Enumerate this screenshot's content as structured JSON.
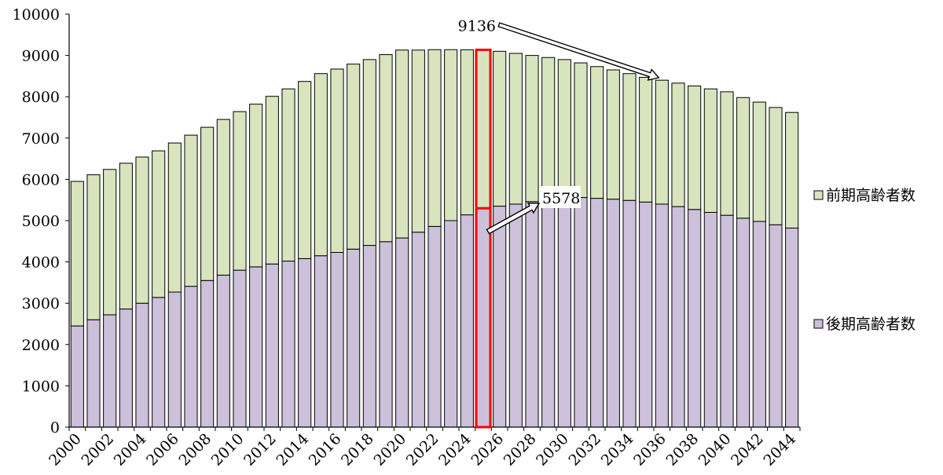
{
  "chart_data": {
    "type": "bar",
    "stacked": true,
    "title": "",
    "xlabel": "",
    "ylabel": "",
    "ylim": [
      0,
      10000
    ],
    "yticks": [
      0,
      1000,
      2000,
      3000,
      4000,
      5000,
      6000,
      7000,
      8000,
      9000,
      10000
    ],
    "grid": false,
    "legend_position": "right",
    "categories": [
      "2000",
      "2001",
      "2002",
      "2003",
      "2004",
      "2005",
      "2006",
      "2007",
      "2008",
      "2009",
      "2010",
      "2011",
      "2012",
      "2013",
      "2014",
      "2015",
      "2016",
      "2017",
      "2018",
      "2019",
      "2020",
      "2021",
      "2022",
      "2023",
      "2024",
      "2025",
      "2026",
      "2027",
      "2028",
      "2029",
      "2030",
      "2031",
      "2032",
      "2033",
      "2034",
      "2035",
      "2036",
      "2037",
      "2038",
      "2039",
      "2040",
      "2041",
      "2042",
      "2043",
      "2044"
    ],
    "x_tick_labels": [
      "2000",
      "2002",
      "2004",
      "2006",
      "2008",
      "2010",
      "2012",
      "2014",
      "2016",
      "2018",
      "2020",
      "2022",
      "2024",
      "2026",
      "2028",
      "2030",
      "2032",
      "2034",
      "2036",
      "2038",
      "2040",
      "2042",
      "2044"
    ],
    "series": [
      {
        "name": "後期高齢者数",
        "color": "#ccc0da",
        "values": [
          2450,
          2600,
          2720,
          2860,
          3000,
          3140,
          3270,
          3410,
          3550,
          3680,
          3800,
          3880,
          3950,
          4020,
          4080,
          4150,
          4230,
          4310,
          4400,
          4490,
          4580,
          4720,
          4860,
          5000,
          5140,
          5300,
          5350,
          5400,
          5460,
          5520,
          5578,
          5560,
          5540,
          5520,
          5490,
          5450,
          5400,
          5340,
          5270,
          5200,
          5130,
          5060,
          4980,
          4900,
          4820
        ]
      },
      {
        "name": "前期高齢者数",
        "color": "#d7e4bd",
        "values": [
          3500,
          3510,
          3520,
          3530,
          3540,
          3550,
          3610,
          3660,
          3710,
          3770,
          3840,
          3940,
          4060,
          4170,
          4290,
          4410,
          4440,
          4480,
          4500,
          4530,
          4550,
          4410,
          4280,
          4140,
          3996,
          3836,
          3750,
          3650,
          3540,
          3430,
          3322,
          3260,
          3190,
          3130,
          3070,
          3020,
          3000,
          2990,
          2990,
          2990,
          2990,
          2920,
          2890,
          2840,
          2800
        ]
      }
    ],
    "highlight": {
      "category": "2025",
      "color": "#ff0000"
    },
    "annotations": [
      {
        "text": "9136",
        "points_to": "2036",
        "level": 8460
      },
      {
        "text": "5578",
        "points_from": "2025",
        "level": 5000
      }
    ]
  }
}
